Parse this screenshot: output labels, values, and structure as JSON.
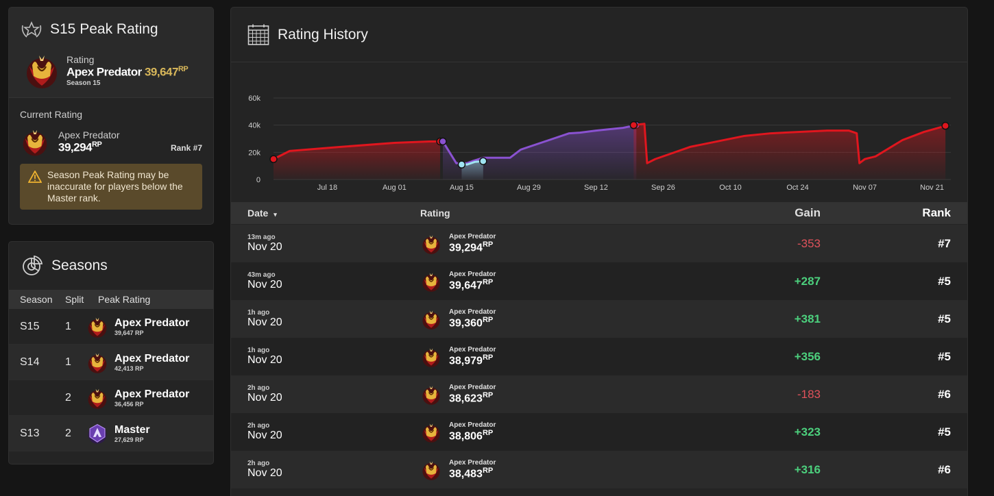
{
  "peak": {
    "title": "S15 Peak Rating",
    "rating_label": "Rating",
    "rank_name": "Apex Predator",
    "rp": "39,647",
    "rp_unit": "RP",
    "season": "Season 15",
    "current_label": "Current Rating",
    "current_rank": "Apex Predator",
    "current_rp": "39,294",
    "current_rank_num": "Rank #7",
    "warning": "Season Peak Rating may be inaccurate for players below the Master rank."
  },
  "seasons": {
    "title": "Seasons",
    "headers": [
      "Season",
      "Split",
      "Peak Rating"
    ],
    "rows": [
      {
        "season": "S15",
        "split": "1",
        "rank": "Apex Predator",
        "rp": "39,647 RP",
        "tier": "predator"
      },
      {
        "season": "S14",
        "split": "1",
        "rank": "Apex Predator",
        "rp": "42,413 RP",
        "tier": "predator"
      },
      {
        "season": "",
        "split": "2",
        "rank": "Apex Predator",
        "rp": "36,456 RP",
        "tier": "predator"
      },
      {
        "season": "S13",
        "split": "2",
        "rank": "Master",
        "rp": "27,629 RP",
        "tier": "master"
      }
    ]
  },
  "history": {
    "title": "Rating History",
    "headers": {
      "date": "Date",
      "date_sort": "▾",
      "rating": "Rating",
      "gain": "Gain",
      "rank": "Rank"
    },
    "rows": [
      {
        "ago": "13m ago",
        "date": "Nov 20",
        "rank": "Apex Predator",
        "rp": "39,294",
        "gain": "-353",
        "pos": false,
        "place": "#7"
      },
      {
        "ago": "43m ago",
        "date": "Nov 20",
        "rank": "Apex Predator",
        "rp": "39,647",
        "gain": "+287",
        "pos": true,
        "place": "#5"
      },
      {
        "ago": "1h ago",
        "date": "Nov 20",
        "rank": "Apex Predator",
        "rp": "39,360",
        "gain": "+381",
        "pos": true,
        "place": "#5"
      },
      {
        "ago": "1h ago",
        "date": "Nov 20",
        "rank": "Apex Predator",
        "rp": "38,979",
        "gain": "+356",
        "pos": true,
        "place": "#5"
      },
      {
        "ago": "2h ago",
        "date": "Nov 20",
        "rank": "Apex Predator",
        "rp": "38,623",
        "gain": "-183",
        "pos": false,
        "place": "#6"
      },
      {
        "ago": "2h ago",
        "date": "Nov 20",
        "rank": "Apex Predator",
        "rp": "38,806",
        "gain": "+323",
        "pos": true,
        "place": "#5"
      },
      {
        "ago": "2h ago",
        "date": "Nov 20",
        "rank": "Apex Predator",
        "rp": "38,483",
        "gain": "+316",
        "pos": true,
        "place": "#6"
      }
    ],
    "rp_unit": "RP"
  },
  "chart_data": {
    "type": "area",
    "x_ticks": [
      "Jul 18",
      "Aug 01",
      "Aug 15",
      "Aug 29",
      "Sep 12",
      "Sep 26",
      "Oct 10",
      "Oct 24",
      "Nov 07",
      "Nov 21"
    ],
    "y_ticks": [
      "0",
      "20k",
      "40k",
      "60k"
    ],
    "ylim": [
      0,
      60000
    ],
    "grid": true,
    "series": [
      {
        "color": "#e0161e",
        "points": [
          [
            0.0,
            15000
          ],
          [
            0.6,
            21000
          ],
          [
            2.5,
            24000
          ],
          [
            4.5,
            27000
          ],
          [
            5.8,
            28000
          ],
          [
            6.2,
            28000
          ]
        ]
      },
      {
        "color": "#8a52d1",
        "points": [
          [
            6.3,
            28000
          ],
          [
            6.8,
            12000
          ],
          [
            7.2,
            12000
          ],
          [
            7.4,
            13500
          ],
          [
            7.8,
            16000
          ],
          [
            8.8,
            16000
          ],
          [
            9.2,
            22000
          ],
          [
            10.4,
            30000
          ],
          [
            11.0,
            34000
          ],
          [
            11.4,
            34500
          ],
          [
            12.0,
            36000
          ],
          [
            13.0,
            38000
          ],
          [
            13.5,
            40000
          ]
        ]
      },
      {
        "color": "#9fe3f2",
        "points": [
          [
            7.0,
            11000
          ],
          [
            7.2,
            11000
          ],
          [
            7.5,
            13000
          ],
          [
            7.8,
            13500
          ]
        ]
      },
      {
        "color": "#e0161e",
        "points": [
          [
            13.4,
            40000
          ],
          [
            13.8,
            41000
          ],
          [
            13.9,
            12000
          ],
          [
            14.2,
            15000
          ],
          [
            15.5,
            24000
          ],
          [
            17.5,
            32000
          ],
          [
            18.5,
            34000
          ],
          [
            20.6,
            36000
          ],
          [
            21.4,
            36000
          ],
          [
            21.7,
            34000
          ],
          [
            21.8,
            12000
          ],
          [
            22.0,
            15000
          ],
          [
            22.4,
            17000
          ],
          [
            23.4,
            29000
          ],
          [
            24.2,
            35000
          ],
          [
            25.0,
            39500
          ]
        ]
      }
    ]
  }
}
